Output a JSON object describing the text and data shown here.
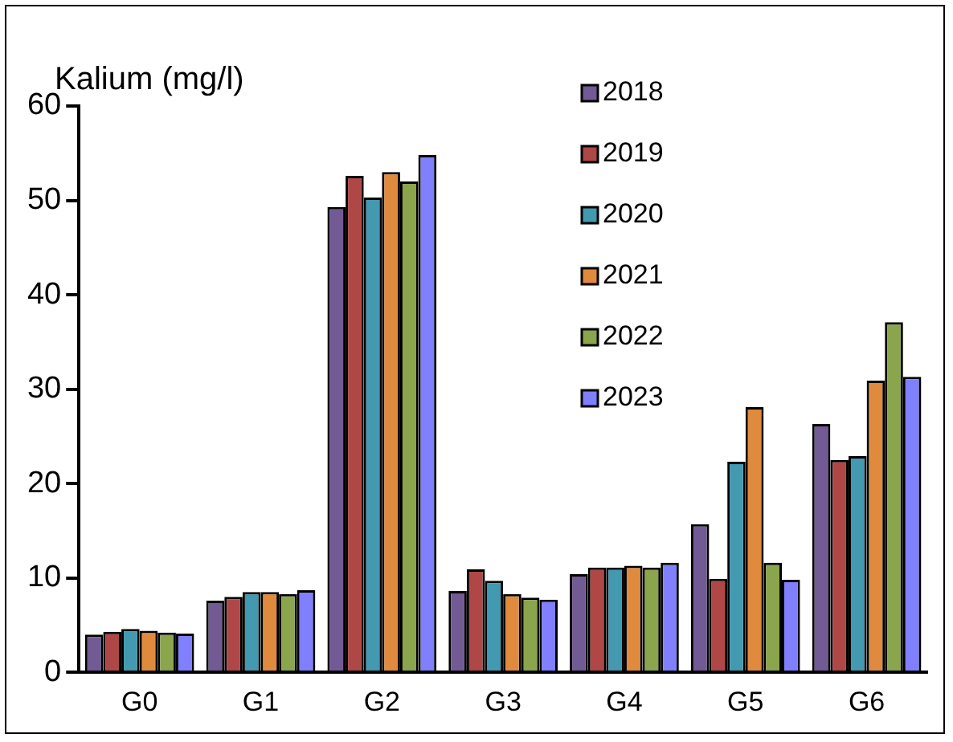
{
  "chart_data": {
    "type": "bar",
    "ylabel": "Kalium (mg/l)",
    "categories": [
      "G0",
      "G1",
      "G2",
      "G3",
      "G4",
      "G5",
      "G6"
    ],
    "series": [
      {
        "name": "2018",
        "color": "#725a94",
        "values": [
          4.0,
          7.6,
          49.3,
          8.6,
          10.4,
          15.7,
          26.3
        ]
      },
      {
        "name": "2019",
        "color": "#b04747",
        "values": [
          4.3,
          8.0,
          52.6,
          10.9,
          11.1,
          9.9,
          22.5
        ]
      },
      {
        "name": "2020",
        "color": "#4299b0",
        "values": [
          4.6,
          8.5,
          50.3,
          9.7,
          11.1,
          22.3,
          22.9
        ]
      },
      {
        "name": "2021",
        "color": "#e08a3e",
        "values": [
          4.4,
          8.5,
          53.0,
          8.3,
          11.3,
          28.1,
          30.9
        ]
      },
      {
        "name": "2022",
        "color": "#8aa54c",
        "values": [
          4.2,
          8.3,
          52.0,
          7.9,
          11.1,
          11.6,
          37.1
        ]
      },
      {
        "name": "2023",
        "color": "#8080ff",
        "values": [
          4.1,
          8.7,
          54.8,
          7.7,
          11.6,
          9.8,
          31.3
        ]
      }
    ],
    "ylim": [
      0,
      60
    ],
    "yticks": [
      0,
      10,
      20,
      30,
      40,
      50,
      60
    ],
    "grid": false,
    "legend": "top right"
  }
}
